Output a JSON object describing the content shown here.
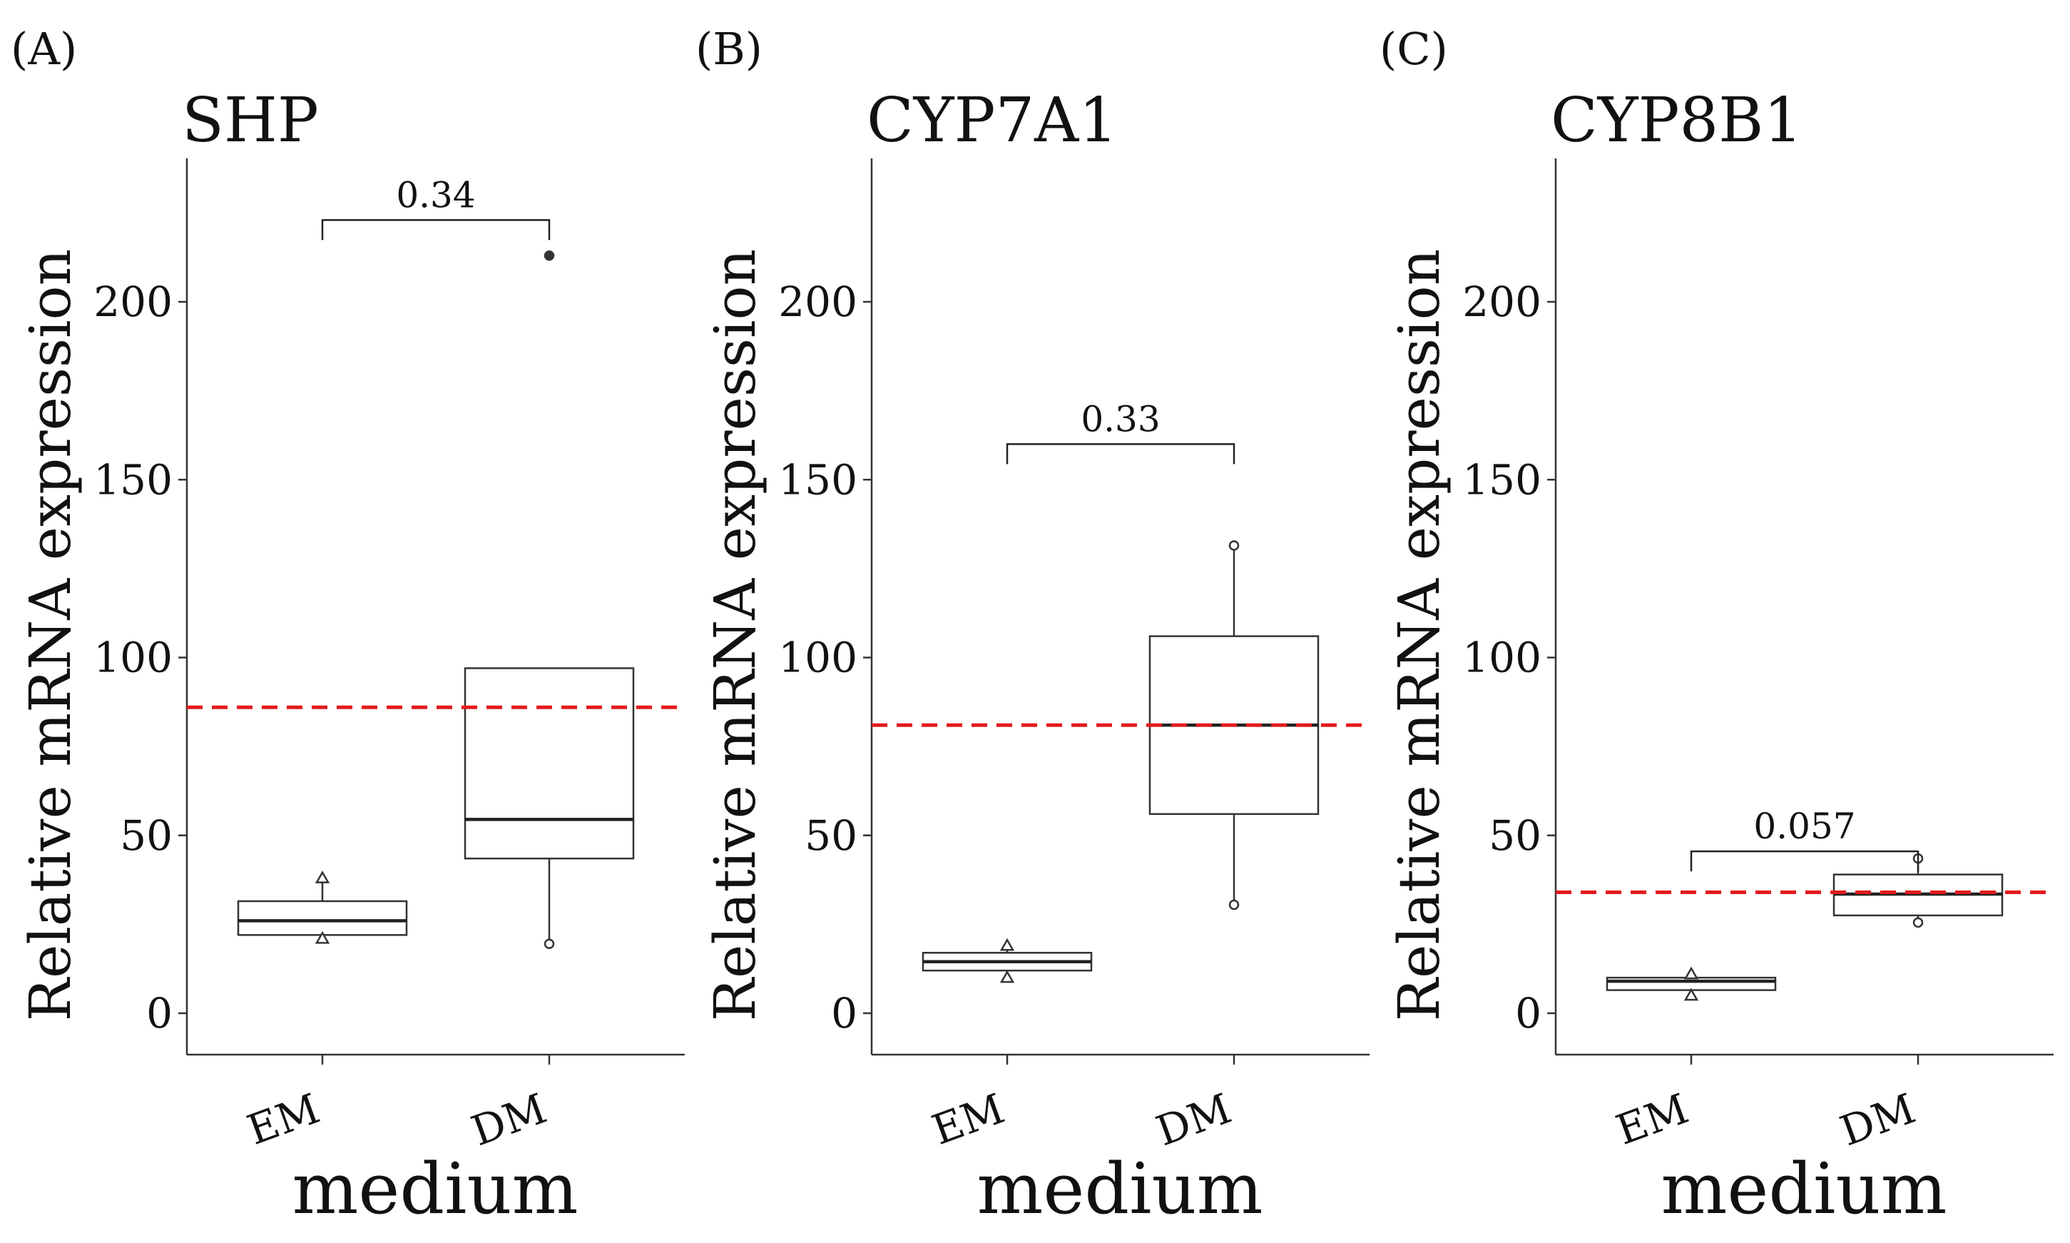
{
  "chart_data": [
    {
      "type": "box",
      "panel_label": "(A)",
      "title": "SHP",
      "xlabel": "medium",
      "ylabel": "Relative mRNA expression",
      "ylim": [
        0,
        230
      ],
      "yticks": [
        0,
        50,
        100,
        150,
        200
      ],
      "categories": [
        "EM",
        "DM"
      ],
      "reference_line": 86,
      "boxes": [
        {
          "category": "EM",
          "q1": 22,
          "median": 26,
          "q3": 31.5,
          "whisker_low": 21,
          "whisker_high": 38,
          "points": [
            {
              "y": 38,
              "marker": "triangle"
            },
            {
              "y": 21,
              "marker": "triangle"
            }
          ]
        },
        {
          "category": "DM",
          "q1": 43.5,
          "median": 54.5,
          "q3": 97,
          "whisker_low": 19.5,
          "whisker_high": 97,
          "points": [
            {
              "y": 19.5,
              "marker": "circle"
            },
            {
              "y": 213,
              "marker": "circle-filled"
            }
          ]
        }
      ],
      "comparison": {
        "label": "0.34",
        "y": 223
      }
    },
    {
      "type": "box",
      "panel_label": "(B)",
      "title": "CYP7A1",
      "xlabel": "medium",
      "ylabel": "Relative mRNA expression",
      "ylim": [
        0,
        230
      ],
      "yticks": [
        0,
        50,
        100,
        150,
        200
      ],
      "categories": [
        "EM",
        "DM"
      ],
      "reference_line": 81,
      "boxes": [
        {
          "category": "EM",
          "q1": 12,
          "median": 14.5,
          "q3": 17,
          "whisker_low": 10,
          "whisker_high": 19,
          "points": [
            {
              "y": 19,
              "marker": "triangle"
            },
            {
              "y": 10,
              "marker": "triangle"
            }
          ]
        },
        {
          "category": "DM",
          "q1": 56,
          "median": 81,
          "q3": 106,
          "whisker_low": 30.5,
          "whisker_high": 131.5,
          "points": [
            {
              "y": 131.5,
              "marker": "circle"
            },
            {
              "y": 30.5,
              "marker": "circle"
            }
          ]
        }
      ],
      "comparison": {
        "label": "0.33",
        "y": 160
      }
    },
    {
      "type": "box",
      "panel_label": "(C)",
      "title": "CYP8B1",
      "xlabel": "medium",
      "ylabel": "Relative mRNA expression",
      "ylim": [
        0,
        230
      ],
      "yticks": [
        0,
        50,
        100,
        150,
        200
      ],
      "categories": [
        "EM",
        "DM"
      ],
      "reference_line": 34,
      "boxes": [
        {
          "category": "EM",
          "q1": 6.5,
          "median": 9,
          "q3": 10,
          "whisker_low": 5,
          "whisker_high": 11,
          "points": [
            {
              "y": 11,
              "marker": "triangle"
            },
            {
              "y": 5,
              "marker": "triangle"
            }
          ]
        },
        {
          "category": "DM",
          "q1": 27.5,
          "median": 33.5,
          "q3": 39,
          "whisker_low": 25.5,
          "whisker_high": 43.5,
          "points": [
            {
              "y": 43.5,
              "marker": "circle"
            },
            {
              "y": 25.5,
              "marker": "circle"
            }
          ]
        }
      ],
      "comparison": {
        "label": "0.057",
        "y": 45.5
      }
    }
  ]
}
